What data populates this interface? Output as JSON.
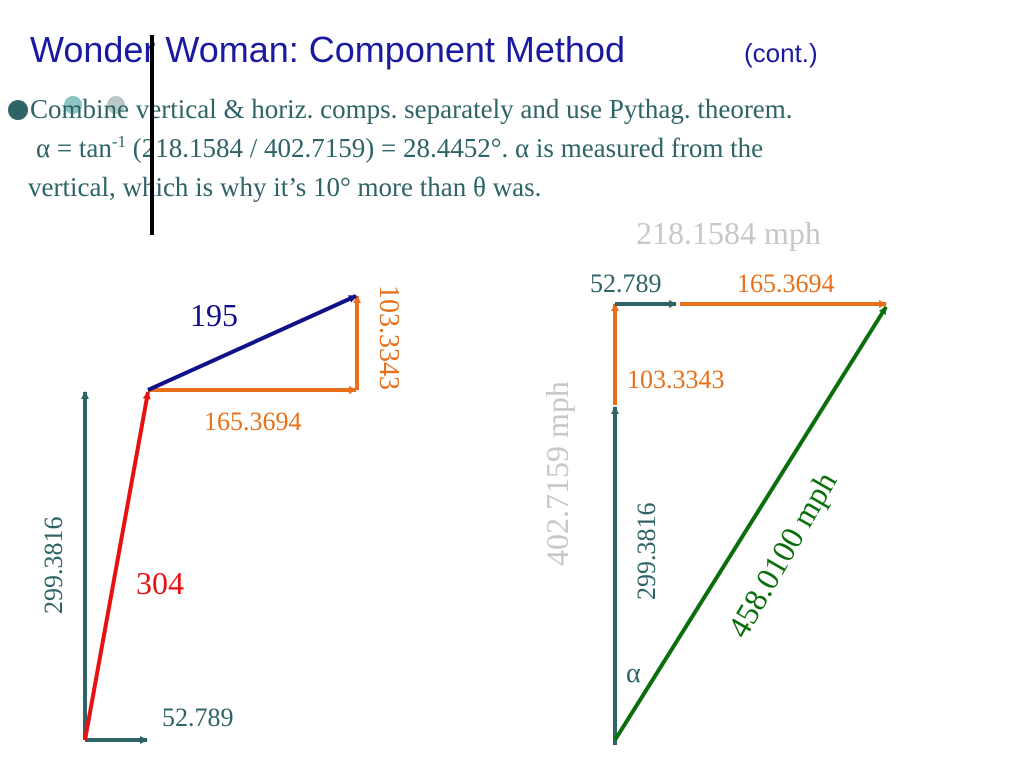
{
  "header": {
    "title": "Wonder Woman:  Component Method",
    "title_suffix": "(cont.)"
  },
  "body": {
    "line1": "Combine vertical & horiz. comps. separately and use Pythag. theorem.",
    "line2_start": "α = tan",
    "line2_sup": "-1",
    "line2_end": " (218.1584 / 402.7159) = 28.4452°. α  is measured from the",
    "line3": "vertical, which is why it’s 10° more than  θ  was."
  },
  "left_diagram": {
    "resultant_top": "195",
    "vertical_small": "103.3343",
    "horizontal_orange": "165.3694",
    "vertical_teal": "299.3816",
    "resultant_bottom": "304",
    "horizontal_teal": "52.789"
  },
  "right_diagram": {
    "total_horizontal": "218.1584 mph",
    "horizontal_teal": "52.789",
    "horizontal_orange": "165.3694",
    "vertical_orange": "103.3343",
    "total_vertical": "402.7159 mph",
    "vertical_teal": "299.3816",
    "resultant": "458.0100 mph",
    "angle": "α"
  }
}
